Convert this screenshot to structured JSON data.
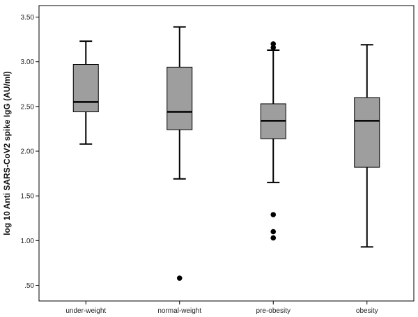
{
  "chart_data": {
    "type": "box",
    "ylabel": "log 10 Anti SARS-CoV2 spike IgG (AU/ml)",
    "xlabel": "",
    "ylim": [
      0.4,
      3.6
    ],
    "yticks": [
      0.5,
      1.0,
      1.5,
      2.0,
      2.5,
      3.0,
      3.5
    ],
    "ytick_labels": [
      ".50",
      "1.00",
      "1.50",
      "2.00",
      "2.50",
      "3.00",
      "3.50"
    ],
    "categories": [
      "under-weight",
      "normal-weight",
      "pre-obesity",
      "obesity"
    ],
    "boxes": [
      {
        "category": "under-weight",
        "whisker_low": 2.08,
        "q1": 2.44,
        "median": 2.55,
        "q3": 2.97,
        "whisker_high": 3.23,
        "outliers": []
      },
      {
        "category": "normal-weight",
        "whisker_low": 1.69,
        "q1": 2.24,
        "median": 2.44,
        "q3": 2.94,
        "whisker_high": 3.39,
        "outliers": [
          0.58
        ]
      },
      {
        "category": "pre-obesity",
        "whisker_low": 1.65,
        "q1": 2.14,
        "median": 2.34,
        "q3": 2.53,
        "whisker_high": 3.13,
        "outliers": [
          3.2,
          3.16,
          1.29,
          1.1,
          1.03
        ]
      },
      {
        "category": "obesity",
        "whisker_low": 0.93,
        "q1": 1.82,
        "median": 2.34,
        "q3": 2.6,
        "whisker_high": 3.19,
        "outliers": []
      }
    ],
    "grid": false,
    "box_fill": "#9e9e9e",
    "line_color": "#000000"
  }
}
